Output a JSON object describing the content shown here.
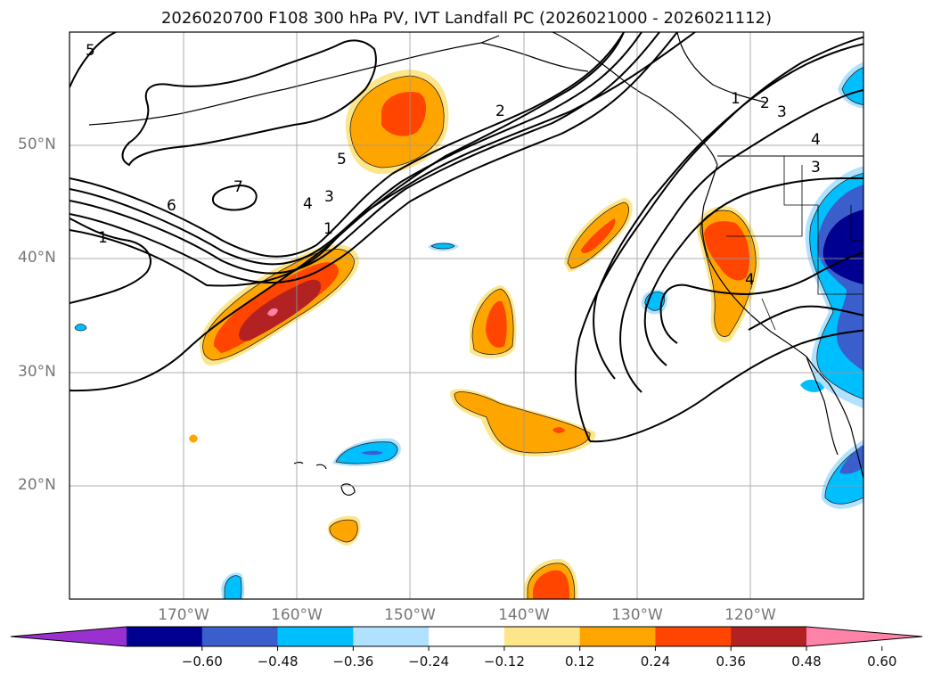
{
  "title": "2026020700 F108 300 hPa PV, IVT Landfall PC (2026021000 - 2026021112)",
  "map": {
    "lat_labels": [
      "50°N",
      "40°N",
      "30°N",
      "20°N"
    ],
    "lon_labels": [
      "170°W",
      "160°W",
      "150°W",
      "140°W",
      "130°W",
      "120°W"
    ],
    "contour_labels": [
      "5",
      "6",
      "7",
      "1",
      "5",
      "4",
      "3",
      "1",
      "2",
      "1",
      "2",
      "3",
      "4",
      "3",
      "4"
    ]
  },
  "colorbar": {
    "tick_labels": [
      "−0.60",
      "−0.48",
      "−0.36",
      "−0.24",
      "−0.12",
      "0.12",
      "0.24",
      "0.36",
      "0.48",
      "0.60"
    ],
    "colors": [
      "#9b30d0",
      "#000090",
      "#3a5fcd",
      "#00bfff",
      "#b0e2ff",
      "#ffffff",
      "#fde68a",
      "#ffa500",
      "#ff4500",
      "#b22222",
      "#ff83a8"
    ]
  }
}
